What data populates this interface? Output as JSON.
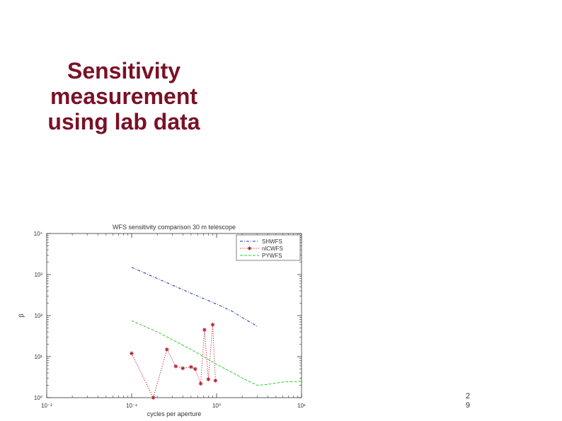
{
  "slide": {
    "title_lines": [
      "Sensitivity",
      "measurement",
      "using lab data"
    ],
    "page_number_lines": [
      "2",
      "9"
    ]
  },
  "chart_data": {
    "type": "line",
    "title": "WFS sensitivity comparison 30 m telescope",
    "xlabel": "cycles per aperture",
    "ylabel": "β",
    "xscale": "log",
    "yscale": "log",
    "xlim": [
      0.01,
      10
    ],
    "ylim": [
      1,
      10000
    ],
    "x_tick_labels": [
      "10⁻²",
      "10⁻¹",
      "10⁰",
      "10¹"
    ],
    "y_tick_labels": [
      "10⁰",
      "10¹",
      "10²",
      "10³",
      "10⁴"
    ],
    "grid": false,
    "legend_position": "top-right",
    "series": [
      {
        "name": "SHWFS",
        "color": "#1f2f9e",
        "style": "dashdot",
        "marker": "none",
        "x": [
          0.1,
          0.2,
          0.5,
          1.0,
          1.5,
          2.0,
          3.0
        ],
        "y": [
          1500,
          800,
          350,
          190,
          130,
          90,
          55
        ]
      },
      {
        "name": "nlCWFS",
        "color": "#b22030",
        "style": "dotted",
        "marker": "asterisk",
        "x": [
          0.1,
          0.18,
          0.26,
          0.33,
          0.4,
          0.5,
          0.56,
          0.65,
          0.72,
          0.8,
          0.9,
          0.97
        ],
        "y": [
          12,
          1.0,
          15,
          5.8,
          5.2,
          5.6,
          5.0,
          2.2,
          45,
          2.8,
          60,
          2.6
        ]
      },
      {
        "name": "PYWFS",
        "color": "#33cc33",
        "style": "dashed",
        "marker": "none",
        "x": [
          0.1,
          0.2,
          0.35,
          0.5,
          0.7,
          1.0,
          1.5,
          2.0,
          3.0,
          4.0,
          6.0,
          10.0
        ],
        "y": [
          75,
          40,
          22,
          15,
          10,
          6.5,
          4.2,
          3.0,
          2.0,
          2.1,
          2.4,
          2.5
        ]
      }
    ]
  }
}
